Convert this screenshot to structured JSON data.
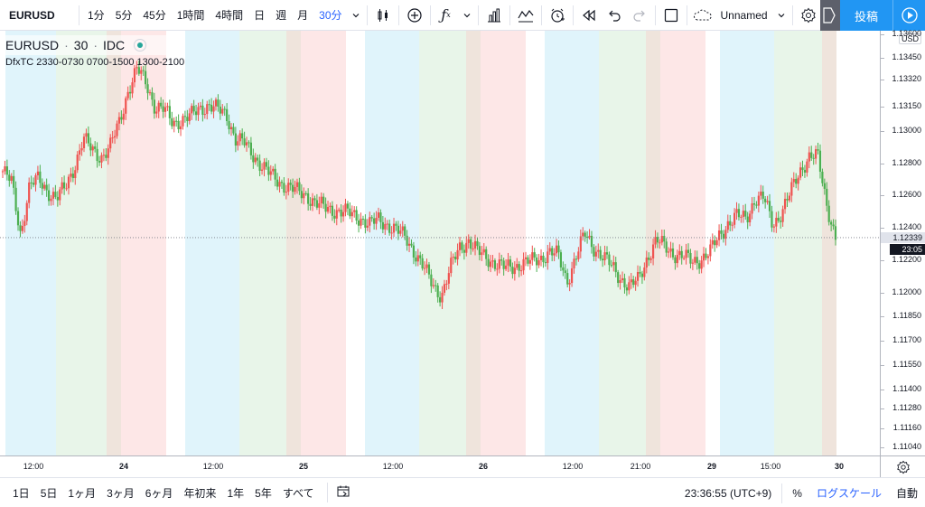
{
  "toolbar": {
    "symbol": "EURUSD",
    "intervals": [
      {
        "label": "1分",
        "active": false
      },
      {
        "label": "5分",
        "active": false
      },
      {
        "label": "45分",
        "active": false
      },
      {
        "label": "1時間",
        "active": false
      },
      {
        "label": "4時間",
        "active": false
      },
      {
        "label": "日",
        "active": false
      },
      {
        "label": "週",
        "active": false
      },
      {
        "label": "月",
        "active": false
      },
      {
        "label": "30分",
        "active": true
      }
    ],
    "layout_name": "Unnamed",
    "publish_label": "投稿",
    "icons": [
      "chevron-down-icon",
      "candlestick-icon",
      "plus-circle-icon",
      "function-icon",
      "bar-chart-icon",
      "indicator-icon",
      "alarm-icon",
      "replay-icon",
      "undo-icon",
      "redo-icon",
      "rectangle-icon",
      "cloud-icon",
      "gear-icon",
      "fullscreen-icon",
      "play-icon"
    ]
  },
  "legend": {
    "symbol": "EURUSD",
    "interval": "30",
    "exchange": "IDC",
    "sep": "·",
    "indicator": "DfxTC 2330-0730 0700-1500 1300-2100"
  },
  "price_axis": {
    "currency": "USD",
    "labels": [
      "1.13600",
      "1.13450",
      "1.13320",
      "1.13150",
      "1.13000",
      "1.12800",
      "1.12600",
      "1.12400",
      "1.12200",
      "1.12000",
      "1.11850",
      "1.11700",
      "1.11550",
      "1.11400",
      "1.11280",
      "1.11160",
      "1.11040"
    ],
    "current_price": "1.12339",
    "current_time": "23:05"
  },
  "time_axis": {
    "labels": [
      {
        "text": "12:00",
        "bold": false
      },
      {
        "text": "24",
        "bold": true
      },
      {
        "text": "12:00",
        "bold": false
      },
      {
        "text": "25",
        "bold": true
      },
      {
        "text": "12:00",
        "bold": false
      },
      {
        "text": "26",
        "bold": true
      },
      {
        "text": "12:00",
        "bold": false
      },
      {
        "text": "21:00",
        "bold": false
      },
      {
        "text": "29",
        "bold": true
      },
      {
        "text": "15:00",
        "bold": false
      },
      {
        "text": "30",
        "bold": true
      }
    ]
  },
  "bottombar": {
    "ranges": [
      "1日",
      "5日",
      "1ヶ月",
      "3ヶ月",
      "6ヶ月",
      "年初来",
      "1年",
      "5年",
      "すべて"
    ],
    "clock": "23:36:55 (UTC+9)",
    "percent": "%",
    "log": "ログスケール",
    "auto": "自動"
  },
  "colors": {
    "up": "#ef5350",
    "down": "#4caf50",
    "session_tokyo": "#e0f4fb",
    "session_london": "#e8f5e9",
    "session_ny": "#fde7e7",
    "session_overlap": "#efe4dc",
    "accent": "#2196f3"
  },
  "chart_data": {
    "type": "candlestick",
    "symbol": "EURUSD",
    "interval": "30",
    "ylim": [
      1.1099,
      1.1362
    ],
    "last_price": 1.12339,
    "x_ticks": [
      "12:00",
      "24",
      "12:00",
      "25",
      "12:00",
      "26",
      "12:00",
      "21:00",
      "29",
      "15:00",
      "30"
    ],
    "y_ticks": [
      1.136,
      1.1345,
      1.1332,
      1.1315,
      1.13,
      1.128,
      1.126,
      1.124,
      1.122,
      1.12,
      1.1185,
      1.117,
      1.1155,
      1.114,
      1.1128,
      1.1116,
      1.1104
    ],
    "close_path": [
      1.1275,
      1.1268,
      1.1236,
      1.1266,
      1.127,
      1.1263,
      1.1258,
      1.1265,
      1.1278,
      1.1295,
      1.1288,
      1.1284,
      1.129,
      1.1305,
      1.1325,
      1.1338,
      1.133,
      1.1315,
      1.1313,
      1.1305,
      1.1307,
      1.1309,
      1.1314,
      1.1316,
      1.1313,
      1.131,
      1.1295,
      1.1292,
      1.1285,
      1.1278,
      1.1272,
      1.1268,
      1.1265,
      1.1262,
      1.126,
      1.1255,
      1.1252,
      1.1251,
      1.125,
      1.1248,
      1.1246,
      1.1242,
      1.1245,
      1.1242,
      1.1238,
      1.1234,
      1.1225,
      1.1215,
      1.1205,
      1.1198,
      1.1215,
      1.1228,
      1.1232,
      1.1225,
      1.1222,
      1.1218,
      1.1215,
      1.1216,
      1.1218,
      1.1219,
      1.1221,
      1.1225,
      1.1223,
      1.1207,
      1.1222,
      1.1236,
      1.1228,
      1.1222,
      1.1216,
      1.1209,
      1.1203,
      1.1208,
      1.1222,
      1.1232,
      1.1228,
      1.1224,
      1.1222,
      1.1219,
      1.1221,
      1.1225,
      1.1235,
      1.1243,
      1.1247,
      1.1246,
      1.1258,
      1.1258,
      1.1242,
      1.125,
      1.1262,
      1.1275,
      1.1284,
      1.1284,
      1.1255,
      1.1234
    ]
  }
}
